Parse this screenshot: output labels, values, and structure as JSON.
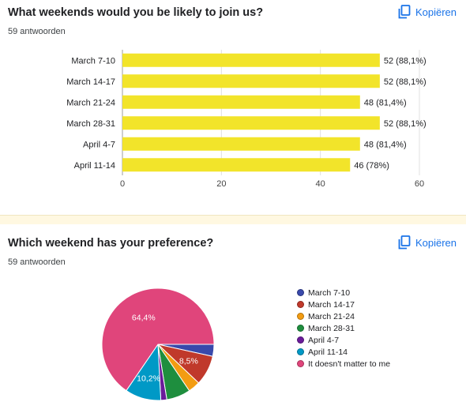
{
  "q1": {
    "title": "What weekends would you be likely to join us?",
    "responses": "59 antwoorden",
    "copy_label": "Kopiëren"
  },
  "q2": {
    "title": "Which weekend has your preference?",
    "responses": "59 antwoorden",
    "copy_label": "Kopiëren"
  },
  "chart_data": [
    {
      "type": "bar",
      "orientation": "horizontal",
      "categories": [
        "March 7-10",
        "March 14-17",
        "March 21-24",
        "March 28-31",
        "April 4-7",
        "April 11-14"
      ],
      "values": [
        52,
        52,
        48,
        52,
        48,
        46
      ],
      "data_labels": [
        "52 (88,1%)",
        "52 (88,1%)",
        "48 (81,4%)",
        "52 (88,1%)",
        "48 (81,4%)",
        "46 (78%)"
      ],
      "xlim": [
        0,
        60
      ],
      "xticks": [
        0,
        20,
        40,
        60
      ],
      "grid": true,
      "color": "#f2e42a"
    },
    {
      "type": "pie",
      "labels": [
        "March 7-10",
        "March 14-17",
        "March 21-24",
        "March 28-31",
        "April 4-7",
        "April 11-14",
        "It doesn't matter to me"
      ],
      "values": [
        3.4,
        8.5,
        3.4,
        6.8,
        1.7,
        10.2,
        64.4
      ],
      "colors": [
        "#3949ab",
        "#c0392b",
        "#f39c12",
        "#1e8e3e",
        "#6a1b9a",
        "#0099c6",
        "#e0457b"
      ],
      "slice_labels": [
        "",
        "8,5%",
        "",
        "",
        "",
        "10,2%",
        "64,4%"
      ],
      "legend_position": "right"
    }
  ]
}
